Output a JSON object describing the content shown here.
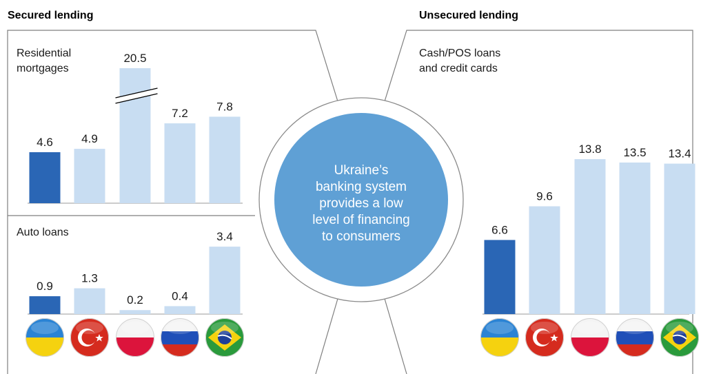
{
  "headers": {
    "secured": "Secured lending",
    "unsecured": "Unsecured lending"
  },
  "center": {
    "lines": [
      "Ukraine’s",
      "banking system",
      "provides a low",
      "level of financing",
      "to consumers"
    ]
  },
  "flags": [
    "ukraine-flag-icon",
    "turkey-flag-icon",
    "poland-flag-icon",
    "russia-flag-icon",
    "brazil-flag-icon"
  ],
  "colors": {
    "highlight": "#2a66b5",
    "bar": "#c8ddf2",
    "circle": "#5fa0d5",
    "line": "#7f7f7f"
  },
  "chart_data": [
    {
      "type": "bar",
      "title_lines": [
        "Residential",
        "mortgages"
      ],
      "categories": [
        "ukraine-flag-icon",
        "turkey-flag-icon",
        "poland-flag-icon",
        "russia-flag-icon",
        "brazil-flag-icon"
      ],
      "values": [
        4.6,
        4.9,
        20.5,
        7.2,
        7.8
      ],
      "labels": [
        "4.6",
        "4.9",
        "20.5",
        "7.2",
        "7.8"
      ],
      "axis_break_on": "20.5",
      "highlight_index": 0
    },
    {
      "type": "bar",
      "title_lines": [
        "Auto loans"
      ],
      "categories": [
        "ukraine-flag-icon",
        "turkey-flag-icon",
        "poland-flag-icon",
        "russia-flag-icon",
        "brazil-flag-icon"
      ],
      "values": [
        0.9,
        1.3,
        0.2,
        0.4,
        3.4
      ],
      "labels": [
        "0.9",
        "1.3",
        "0.2",
        "0.4",
        "3.4"
      ],
      "highlight_index": 0
    },
    {
      "type": "bar",
      "title_lines": [
        "Cash/POS loans",
        "and credit cards"
      ],
      "categories": [
        "ukraine-flag-icon",
        "turkey-flag-icon",
        "poland-flag-icon",
        "russia-flag-icon",
        "brazil-flag-icon"
      ],
      "values": [
        6.6,
        9.6,
        13.8,
        13.5,
        13.4
      ],
      "labels": [
        "6.6",
        "9.6",
        "13.8",
        "13.5",
        "13.4"
      ],
      "highlight_index": 0
    }
  ]
}
